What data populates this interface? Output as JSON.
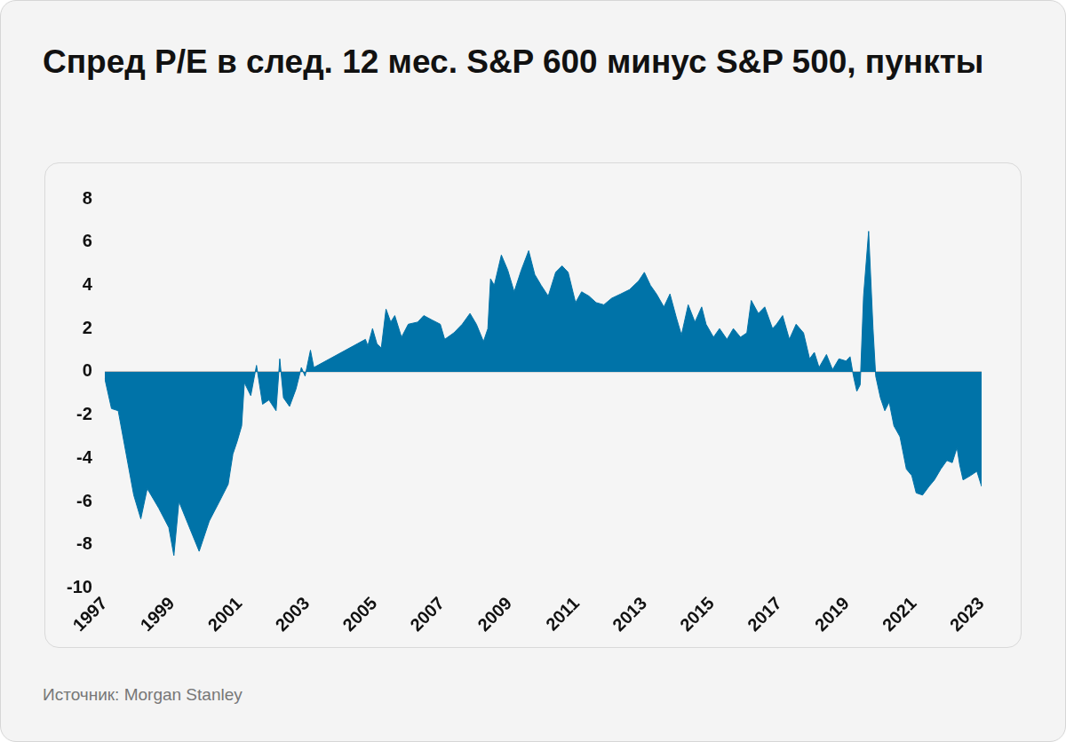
{
  "chart_data": {
    "type": "area",
    "title": "Спред P/E в след. 12 мес. S&P 600 минус S&P 500, пункты",
    "source": "Источник: Morgan Stanley",
    "color": "#0073a8",
    "grid": false,
    "xlim": [
      1997,
      2023
    ],
    "xticks": [
      1997,
      1999,
      2001,
      2003,
      2005,
      2007,
      2009,
      2011,
      2013,
      2015,
      2017,
      2019,
      2021,
      2023
    ],
    "ylim": [
      -10,
      8
    ],
    "yticks": [
      -10,
      -8,
      -6,
      -4,
      -2,
      0,
      2,
      4,
      6,
      8
    ],
    "x": [
      1997.0,
      1997.2,
      1997.4,
      1997.86,
      1998.07,
      1998.26,
      1998.6,
      1998.9,
      1999.05,
      1999.2,
      1999.46,
      1999.8,
      2000.1,
      2000.4,
      2000.66,
      2000.8,
      2000.93,
      2001.06,
      2001.14,
      2001.33,
      2001.5,
      2001.68,
      2001.87,
      2002.08,
      2002.19,
      2002.3,
      2002.48,
      2002.67,
      2002.83,
      2002.94,
      2003.1,
      2003.2,
      2004.73,
      2004.8,
      2004.94,
      2005.07,
      2005.2,
      2005.34,
      2005.48,
      2005.6,
      2005.8,
      2006.0,
      2006.28,
      2006.46,
      2006.7,
      2006.95,
      2007.08,
      2007.35,
      2007.6,
      2007.83,
      2008.02,
      2008.23,
      2008.36,
      2008.44,
      2008.55,
      2008.76,
      2008.95,
      2009.14,
      2009.35,
      2009.57,
      2009.75,
      2009.94,
      2010.15,
      2010.37,
      2010.56,
      2010.74,
      2010.96,
      2011.14,
      2011.36,
      2011.57,
      2011.8,
      2012.03,
      2012.3,
      2012.56,
      2012.83,
      2013.0,
      2013.18,
      2013.36,
      2013.58,
      2013.76,
      2013.95,
      2014.1,
      2014.3,
      2014.5,
      2014.7,
      2014.83,
      2015.05,
      2015.23,
      2015.45,
      2015.64,
      2015.85,
      2016.04,
      2016.17,
      2016.38,
      2016.57,
      2016.8,
      2016.92,
      2017.1,
      2017.3,
      2017.5,
      2017.72,
      2017.9,
      2018.04,
      2018.18,
      2018.4,
      2018.58,
      2018.77,
      2018.98,
      2019.1,
      2019.2,
      2019.3,
      2019.4,
      2019.5,
      2019.65,
      2019.78,
      2019.86,
      2020.0,
      2020.13,
      2020.26,
      2020.4,
      2020.58,
      2020.77,
      2020.93,
      2021.06,
      2021.25,
      2021.44,
      2021.6,
      2021.79,
      2021.97,
      2022.13,
      2022.27,
      2022.35,
      2022.45,
      2022.67,
      2022.86,
      2023.0
    ],
    "values": [
      -0.3,
      -1.7,
      -1.8,
      -5.7,
      -6.8,
      -5.4,
      -6.3,
      -7.2,
      -8.5,
      -6.0,
      -7.0,
      -8.3,
      -6.9,
      -6.0,
      -5.2,
      -3.8,
      -3.2,
      -2.5,
      -0.5,
      -1.1,
      0.3,
      -1.5,
      -1.3,
      -1.8,
      0.6,
      -1.2,
      -1.6,
      -0.8,
      0.2,
      -0.2,
      1.0,
      0.2,
      1.5,
      1.2,
      2.0,
      1.3,
      1.1,
      2.9,
      2.3,
      2.6,
      1.6,
      2.2,
      2.3,
      2.6,
      2.4,
      2.2,
      1.5,
      1.8,
      2.2,
      2.7,
      2.2,
      1.4,
      2.0,
      4.3,
      4.0,
      5.4,
      4.7,
      3.7,
      4.7,
      5.6,
      4.5,
      4.0,
      3.5,
      4.6,
      4.9,
      4.6,
      3.2,
      3.7,
      3.5,
      3.2,
      3.1,
      3.4,
      3.6,
      3.8,
      4.2,
      4.6,
      4.0,
      3.6,
      3.0,
      3.6,
      2.5,
      1.7,
      3.1,
      2.3,
      3.0,
      2.2,
      1.6,
      2.0,
      1.5,
      2.0,
      1.6,
      1.8,
      3.3,
      2.7,
      3.0,
      2.0,
      2.2,
      2.6,
      1.5,
      2.2,
      1.8,
      0.6,
      0.9,
      0.2,
      0.8,
      0.1,
      0.6,
      0.5,
      0.7,
      -0.2,
      -0.9,
      -0.6,
      3.5,
      6.5,
      2.0,
      -0.2,
      -1.2,
      -1.8,
      -1.4,
      -2.5,
      -3.0,
      -4.5,
      -4.8,
      -5.6,
      -5.7,
      -5.3,
      -5.0,
      -4.5,
      -4.1,
      -4.2,
      -3.5,
      -4.3,
      -5.0,
      -4.8,
      -4.6,
      -5.3
    ]
  }
}
